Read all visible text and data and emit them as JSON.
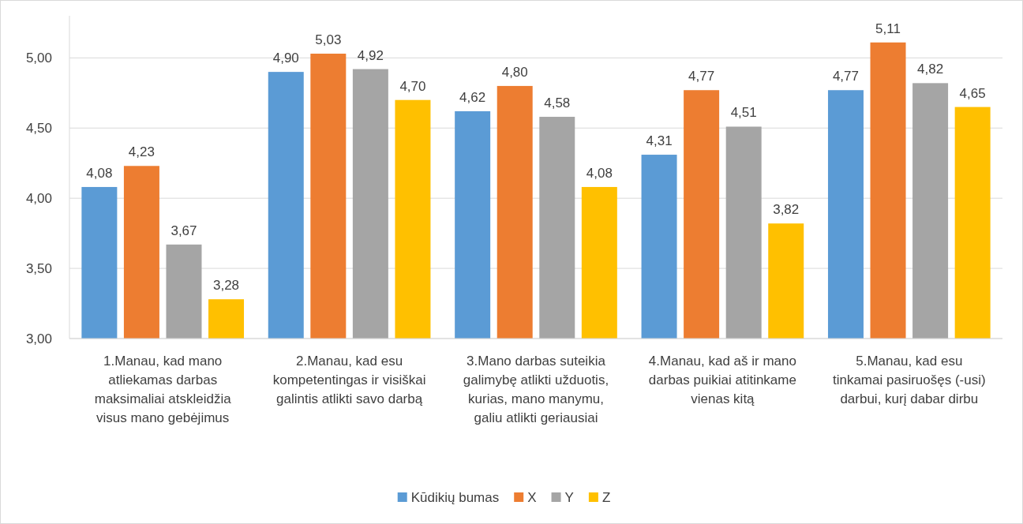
{
  "chart_data": {
    "type": "bar",
    "categories": [
      "1.Manau, kad mano atliekamas darbas maksimaliai atskleidžia visus mano gebėjimus",
      "2.Manau, kad esu kompetentingas ir visiškai galintis atlikti savo darbą",
      "3.Mano darbas suteikia galimybę atlikti užduotis, kurias, mano manymu, galiu atlikti geriausiai",
      "4.Manau, kad aš ir mano darbas puikiai atitinkame vienas kitą",
      "5.Manau, kad esu tinkamai pasiruošęs (-usi) darbui, kurį dabar dirbu"
    ],
    "series": [
      {
        "name": "Kūdikių bumas",
        "color": "#5b9bd5",
        "values": [
          4.08,
          4.9,
          4.62,
          4.31,
          4.77
        ],
        "value_labels": [
          "4,08",
          "4,90",
          "4,62",
          "4,31",
          "4,77"
        ]
      },
      {
        "name": "X",
        "color": "#ed7d31",
        "values": [
          4.23,
          5.03,
          4.8,
          4.77,
          5.11
        ],
        "value_labels": [
          "4,23",
          "5,03",
          "4,80",
          "4,77",
          "5,11"
        ]
      },
      {
        "name": "Y",
        "color": "#a5a5a5",
        "values": [
          3.67,
          4.92,
          4.58,
          4.51,
          4.82
        ],
        "value_labels": [
          "3,67",
          "4,92",
          "4,58",
          "4,51",
          "4,82"
        ]
      },
      {
        "name": "Z",
        "color": "#ffc000",
        "values": [
          3.28,
          4.7,
          4.08,
          3.82,
          4.65
        ],
        "value_labels": [
          "3,28",
          "4,70",
          "4,08",
          "3,82",
          "4,65"
        ]
      }
    ],
    "ylim": [
      3,
      5.3
    ],
    "yticks": [
      {
        "value": 3,
        "label": "3,00"
      },
      {
        "value": 3.5,
        "label": "3,50"
      },
      {
        "value": 4,
        "label": "4,00"
      },
      {
        "value": 4.5,
        "label": "4,50"
      },
      {
        "value": 5,
        "label": "5,00"
      }
    ],
    "grid": "y",
    "legend": "bottom"
  }
}
